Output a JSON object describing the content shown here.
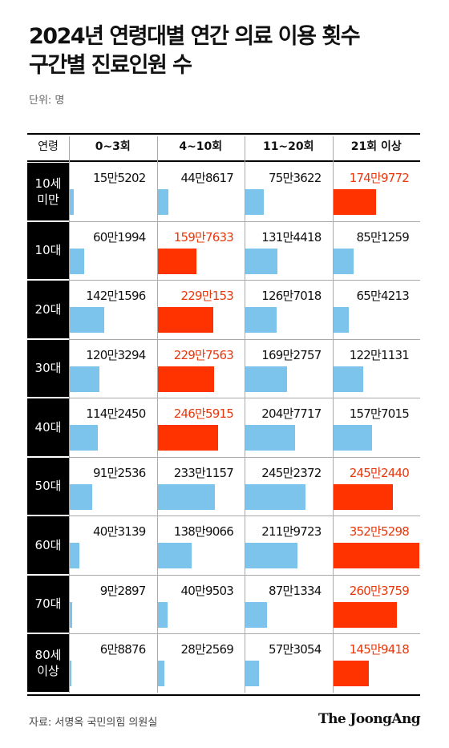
{
  "title_line1": "2024년 연령대별 연간 의료 이용 횟수",
  "title_line2": "구간별 진료인원 수",
  "unit": "단위: 명",
  "source": "자료: 서명옥 국민의힘 의원실",
  "logo": "The JoongAng",
  "colors": {
    "normal": "#7dc4ec",
    "highlight": "#ff3300",
    "highlight_text": "#e8380d"
  },
  "chart_data": {
    "type": "table",
    "row_header_label": "연령",
    "columns": [
      "0~3회",
      "4~10회",
      "11~20회",
      "21회 이상"
    ],
    "bar_max": 3525298,
    "rows": [
      {
        "age": "10세\n미만",
        "labels": [
          "15만5202",
          "44만8617",
          "75만3622",
          "174만9772"
        ],
        "values": [
          155202,
          448617,
          753622,
          1749772
        ],
        "highlight": 3
      },
      {
        "age": "10대",
        "labels": [
          "60만1994",
          "159만7633",
          "131만4418",
          "85만1259"
        ],
        "values": [
          601994,
          1597633,
          1314418,
          851259
        ],
        "highlight": 1
      },
      {
        "age": "20대",
        "labels": [
          "142만1596",
          "229만153",
          "126만7018",
          "65만4213"
        ],
        "values": [
          1421596,
          2290153,
          1267018,
          654213
        ],
        "highlight": 1
      },
      {
        "age": "30대",
        "labels": [
          "120만3294",
          "229만7563",
          "169만2757",
          "122만1131"
        ],
        "values": [
          1203294,
          2297563,
          1692757,
          1221131
        ],
        "highlight": 1
      },
      {
        "age": "40대",
        "labels": [
          "114만2450",
          "246만5915",
          "204만7717",
          "157만7015"
        ],
        "values": [
          1142450,
          2465915,
          2047717,
          1577015
        ],
        "highlight": 1
      },
      {
        "age": "50대",
        "labels": [
          "91만2536",
          "233만1157",
          "245만2372",
          "245만2440"
        ],
        "values": [
          912536,
          2331157,
          2452372,
          2452440
        ],
        "highlight": 3
      },
      {
        "age": "60대",
        "labels": [
          "40만3139",
          "138만9066",
          "211만9723",
          "352만5298"
        ],
        "values": [
          403139,
          1389066,
          2119723,
          3525298
        ],
        "highlight": 3
      },
      {
        "age": "70대",
        "labels": [
          "9만2897",
          "40만9503",
          "87만1334",
          "260만3759"
        ],
        "values": [
          92897,
          409503,
          871334,
          2603759
        ],
        "highlight": 3
      },
      {
        "age": "80세\n이상",
        "labels": [
          "6만8876",
          "28만2569",
          "57만3054",
          "145만9418"
        ],
        "values": [
          68876,
          282569,
          573054,
          1459418
        ],
        "highlight": 3
      }
    ]
  }
}
